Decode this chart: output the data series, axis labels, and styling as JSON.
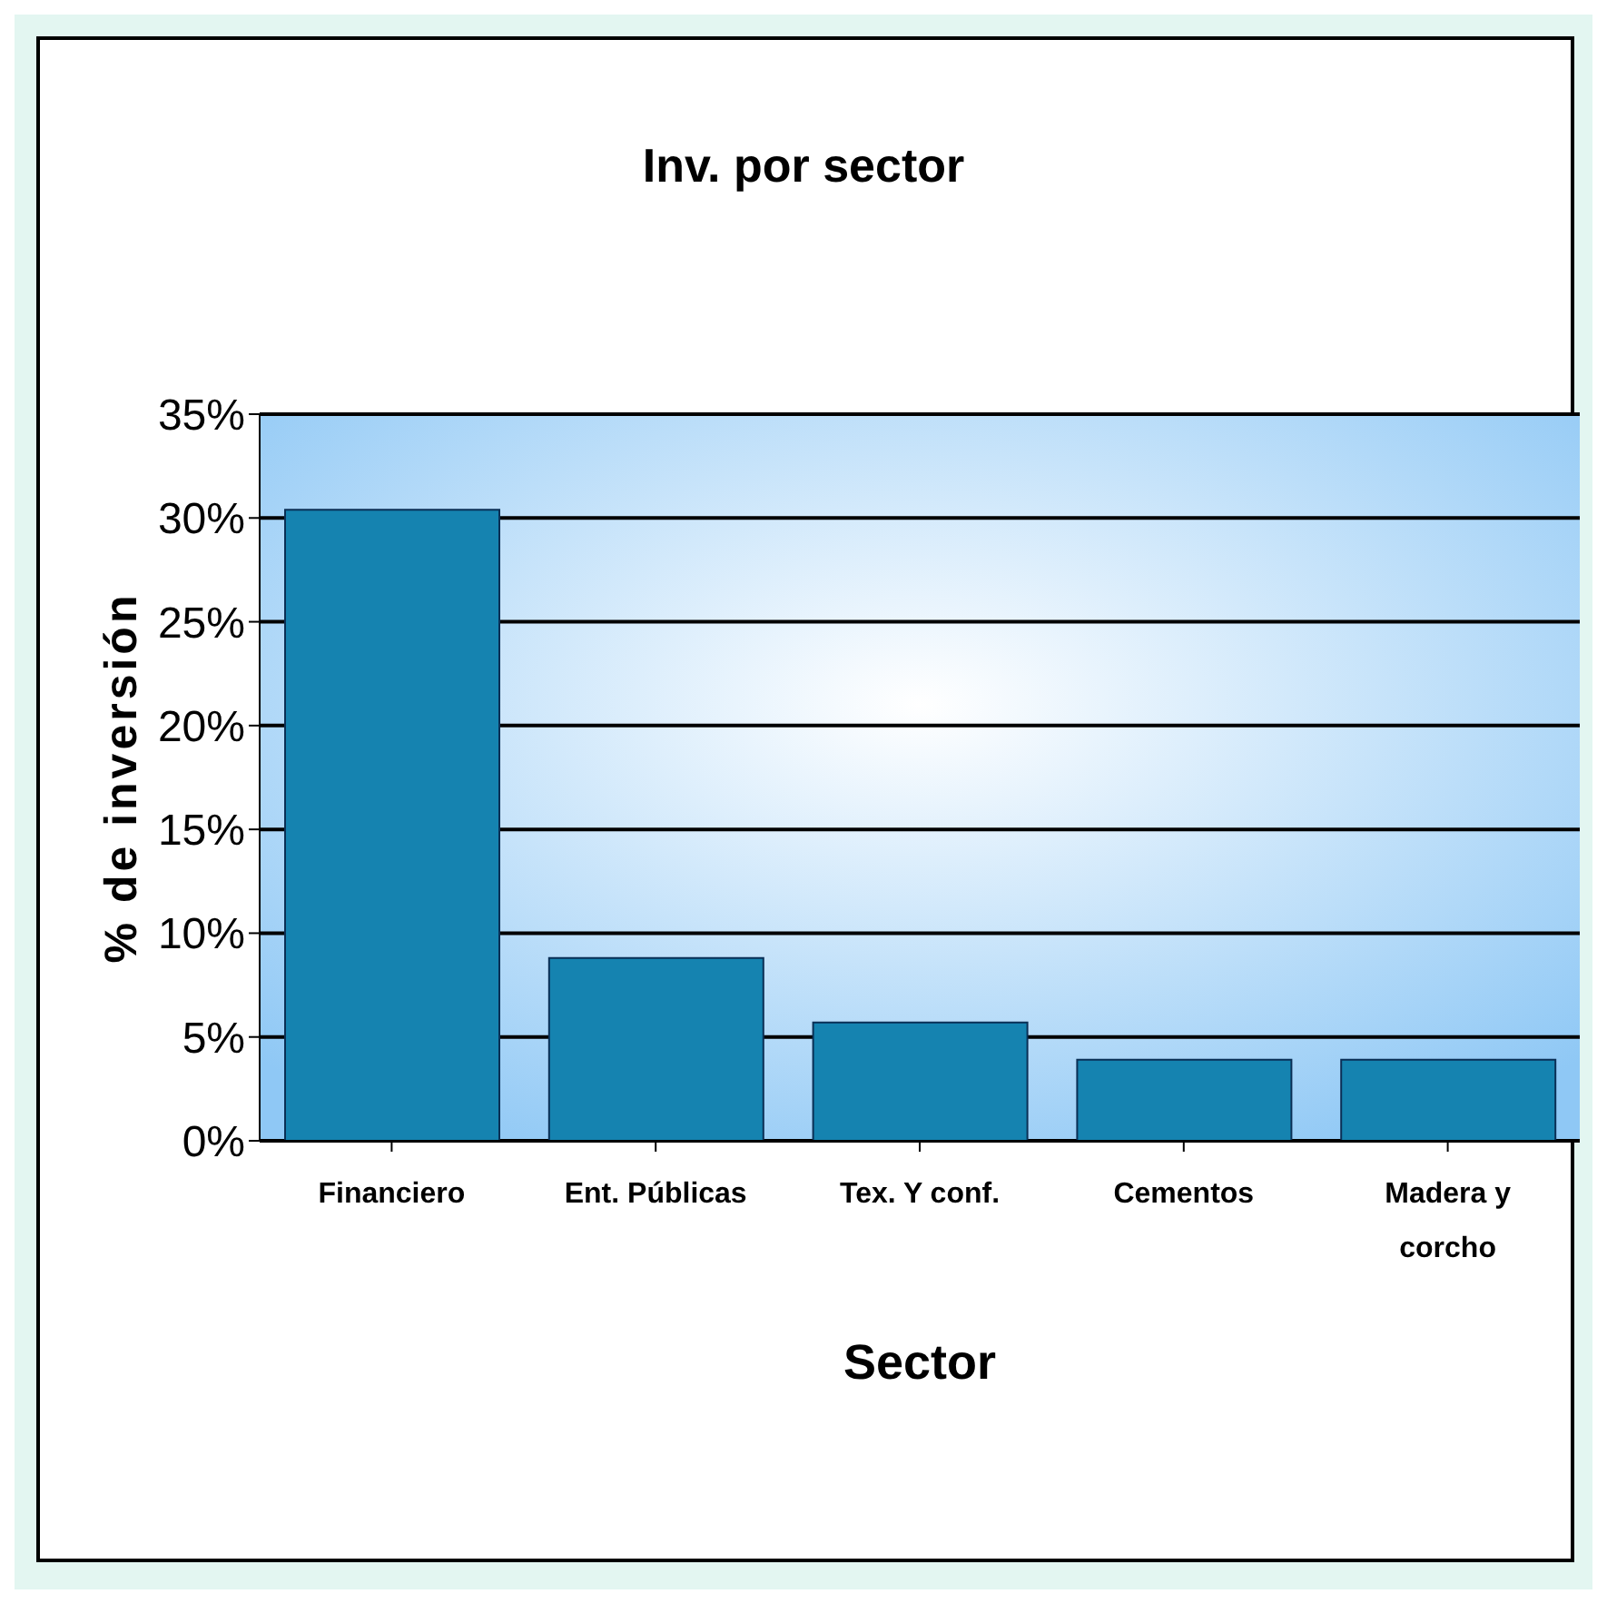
{
  "chart_data": {
    "type": "bar",
    "title": "Inv. por sector",
    "xlabel": "Sector",
    "ylabel": "% de inversión",
    "categories": [
      "Financiero",
      "Ent. Públicas",
      "Tex. Y conf.",
      "Cementos",
      "Madera y corcho"
    ],
    "values": [
      30.4,
      8.8,
      5.7,
      3.9,
      3.9
    ],
    "color": "#1583b0",
    "ylim": [
      0,
      35
    ],
    "yticks": [
      {
        "value": 0,
        "label": "0%"
      },
      {
        "value": 5,
        "label": "5%"
      },
      {
        "value": 10,
        "label": "10%"
      },
      {
        "value": 15,
        "label": "15%"
      },
      {
        "value": 20,
        "label": "20%"
      },
      {
        "value": 25,
        "label": "25%"
      },
      {
        "value": 30,
        "label": "30%"
      },
      {
        "value": 35,
        "label": "35%"
      }
    ],
    "grid": "y"
  }
}
